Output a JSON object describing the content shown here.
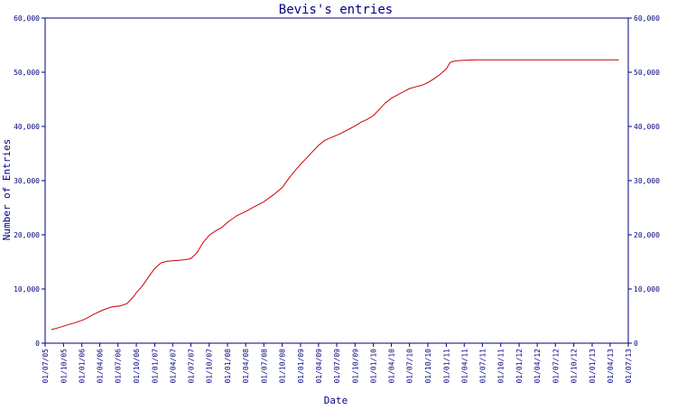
{
  "chart_data": {
    "type": "line",
    "title": "Bevis's entries",
    "xlabel": "Date",
    "ylabel": "Number of Entries",
    "ylim": [
      0,
      60000
    ],
    "y_ticks": [
      0,
      10000,
      20000,
      30000,
      40000,
      50000,
      60000
    ],
    "y_tick_labels": [
      "0",
      "10,000",
      "20,000",
      "30,000",
      "40,000",
      "50,000",
      "60,000"
    ],
    "x_range": [
      "2005-07-01",
      "2013-07-01"
    ],
    "x_tick_labels": [
      "01/07/05",
      "01/10/05",
      "01/01/06",
      "01/04/06",
      "01/07/06",
      "01/10/06",
      "01/01/07",
      "01/04/07",
      "01/07/07",
      "01/10/07",
      "01/01/08",
      "01/04/08",
      "01/07/08",
      "01/10/08",
      "01/01/09",
      "01/04/09",
      "01/07/09",
      "01/10/09",
      "01/01/10",
      "01/04/10",
      "01/07/10",
      "01/10/10",
      "01/01/11",
      "01/04/11",
      "01/07/11",
      "01/10/11",
      "01/01/12",
      "01/04/12",
      "01/07/12",
      "01/10/12",
      "01/01/13",
      "01/04/13",
      "01/07/13"
    ],
    "right_axis": true,
    "grid": false,
    "colors": {
      "axis": "#000080",
      "line": "#cc0000"
    },
    "series": [
      {
        "x": [
          "2005-08-01",
          "2005-09-01",
          "2005-10-15",
          "2005-12-01",
          "2006-01-15",
          "2006-03-01",
          "2006-04-15",
          "2006-06-01",
          "2006-07-15",
          "2006-08-15",
          "2006-09-15",
          "2006-10-01",
          "2006-11-01",
          "2006-12-01",
          "2007-01-01",
          "2007-02-01",
          "2007-03-01",
          "2007-04-01",
          "2007-05-01",
          "2007-06-01",
          "2007-07-01",
          "2007-08-01",
          "2007-09-01",
          "2007-10-01",
          "2007-11-01",
          "2007-12-01",
          "2008-01-01",
          "2008-02-15",
          "2008-04-01",
          "2008-05-15",
          "2008-07-01",
          "2008-08-15",
          "2008-10-01",
          "2008-11-01",
          "2008-12-01",
          "2009-01-01",
          "2009-02-01",
          "2009-03-01",
          "2009-04-01",
          "2009-05-01",
          "2009-06-01",
          "2009-07-15",
          "2009-09-01",
          "2009-10-01",
          "2009-11-01",
          "2009-12-01",
          "2010-01-01",
          "2010-02-01",
          "2010-03-01",
          "2010-04-01",
          "2010-05-01",
          "2010-06-01",
          "2010-07-01",
          "2010-08-01",
          "2010-09-01",
          "2010-10-01",
          "2010-11-01",
          "2010-12-01",
          "2011-01-01",
          "2011-01-20",
          "2011-02-15",
          "2011-04-01",
          "2011-06-01",
          "2012-01-01",
          "2013-01-01",
          "2013-05-15"
        ],
        "y": [
          2500,
          2800,
          3300,
          3800,
          4400,
          5300,
          6100,
          6700,
          6900,
          7300,
          8500,
          9300,
          10600,
          12200,
          13800,
          14800,
          15100,
          15200,
          15300,
          15400,
          15600,
          16700,
          18600,
          19900,
          20700,
          21300,
          22300,
          23500,
          24300,
          25200,
          26100,
          27300,
          28700,
          30300,
          31700,
          33000,
          34200,
          35300,
          36500,
          37400,
          37900,
          38600,
          39500,
          40100,
          40800,
          41300,
          42000,
          43200,
          44300,
          45200,
          45800,
          46400,
          47000,
          47300,
          47600,
          48100,
          48800,
          49600,
          50600,
          51800,
          52100,
          52200,
          52300,
          52300,
          52300,
          52300
        ]
      }
    ]
  }
}
